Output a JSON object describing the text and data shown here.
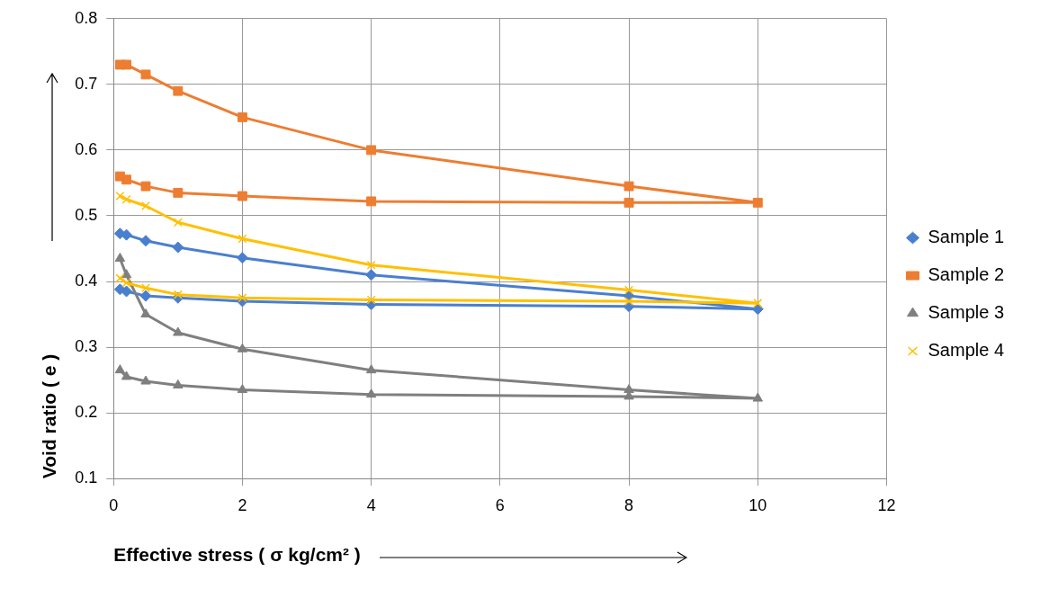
{
  "chart_data": {
    "type": "scatter",
    "xlabel": "Effective stress ( σ kg/cm² )",
    "ylabel": "Void ratio ( e )",
    "xlim": [
      0,
      12
    ],
    "xticks": [
      0,
      2,
      4,
      6,
      8,
      10,
      12
    ],
    "ylim": [
      0.1,
      0.8
    ],
    "yticks": [
      0.1,
      0.2,
      0.3,
      0.4,
      0.5,
      0.6,
      0.7,
      0.8
    ],
    "grid": true,
    "legend": "right",
    "line_style": "solid",
    "series": [
      {
        "name": "Sample 1",
        "type": "line",
        "marker": "diamond",
        "color": "#4a7fcf",
        "x": [
          0.1,
          0.2,
          0.5,
          1,
          2,
          4,
          8,
          10,
          8,
          4,
          2,
          1,
          0.5,
          0.2,
          0.1
        ],
        "values": [
          0.473,
          0.471,
          0.462,
          0.452,
          0.436,
          0.41,
          0.378,
          0.358,
          0.362,
          0.365,
          0.37,
          0.375,
          0.378,
          0.385,
          0.388
        ]
      },
      {
        "name": "Sample 2",
        "type": "line",
        "marker": "square",
        "color": "#ed7d31",
        "x": [
          0.1,
          0.2,
          0.5,
          1,
          2,
          4,
          8,
          10,
          8,
          4,
          2,
          1,
          0.5,
          0.2,
          0.1
        ],
        "values": [
          0.73,
          0.73,
          0.715,
          0.69,
          0.65,
          0.6,
          0.545,
          0.52,
          0.52,
          0.522,
          0.53,
          0.535,
          0.545,
          0.555,
          0.56
        ]
      },
      {
        "name": "Sample 3",
        "type": "line",
        "marker": "triangle",
        "color": "#7f7f7f",
        "x": [
          0.1,
          0.2,
          0.5,
          1,
          2,
          4,
          8,
          10,
          8,
          4,
          2,
          1,
          0.5,
          0.2,
          0.1
        ],
        "values": [
          0.435,
          0.41,
          0.35,
          0.322,
          0.297,
          0.265,
          0.235,
          0.222,
          0.225,
          0.228,
          0.235,
          0.242,
          0.248,
          0.255,
          0.265
        ]
      },
      {
        "name": "Sample 4",
        "type": "line",
        "marker": "cross",
        "color": "#ffc000",
        "x": [
          0.1,
          0.2,
          0.5,
          1,
          2,
          4,
          8,
          10,
          8,
          4,
          2,
          1,
          0.5,
          0.2,
          0.1
        ],
        "values": [
          0.53,
          0.525,
          0.515,
          0.49,
          0.465,
          0.425,
          0.387,
          0.367,
          0.37,
          0.372,
          0.375,
          0.38,
          0.39,
          0.398,
          0.405
        ]
      }
    ]
  }
}
